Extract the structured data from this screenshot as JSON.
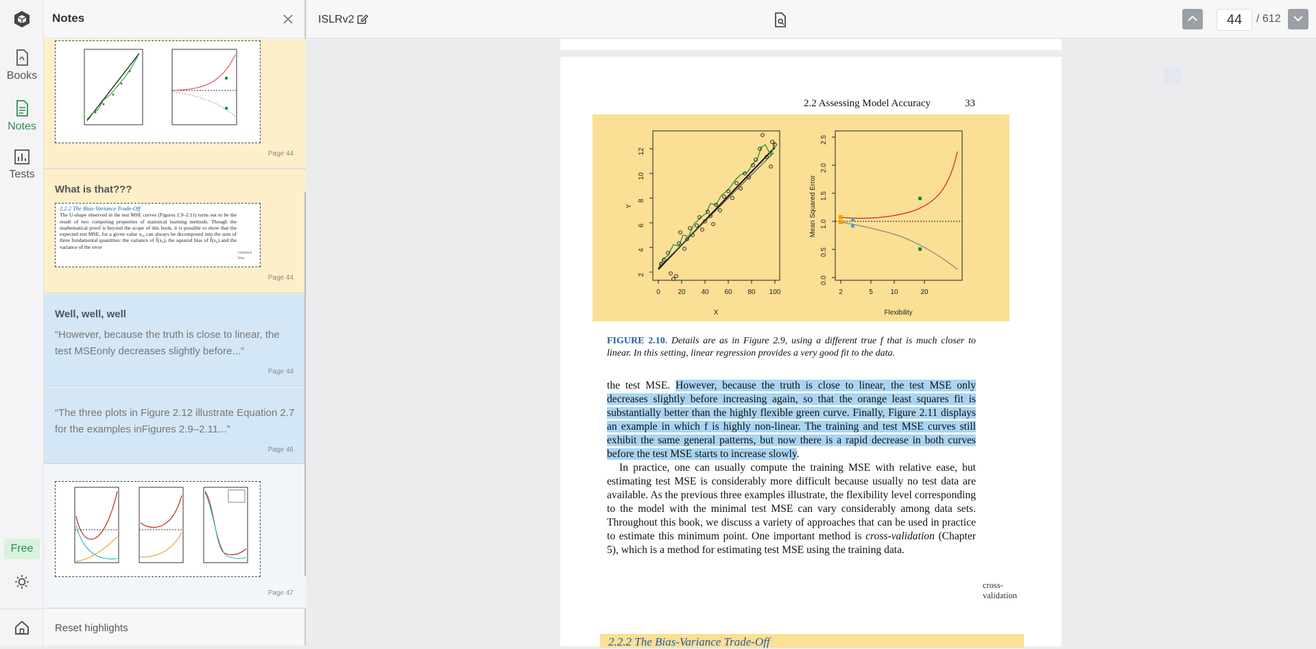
{
  "rail": {
    "books_label": "Books",
    "notes_label": "Notes",
    "tests_label": "Tests",
    "free_label": "Free"
  },
  "notes": {
    "title": "Notes",
    "items": [
      {
        "heading": "",
        "quote": "",
        "page": "Page 44"
      },
      {
        "heading": "What is that???",
        "quote": "",
        "page": "Page 44"
      },
      {
        "heading": "Well, well, well",
        "quote": "“However, because the truth is close to linear, the test MSEonly decreases slightly before...”",
        "page": "Page 44"
      },
      {
        "heading": "",
        "quote": "“The three plots in Figure 2.12 illustrate Equation 2.7 for the examples inFigures 2.9–2.11...”",
        "page": "Page 46"
      },
      {
        "heading": "",
        "quote": "",
        "page": "Page 47"
      }
    ],
    "reset_label": "Reset highlights",
    "snippet": {
      "section": "2.2.2   The Bias-Variance Trade-Off",
      "text": "The U-shape observed in the test MSE curves (Figures 2.9–2.11) turns out to be the result of two competing properties of statistical learning methods. Though the mathematical proof is beyond the scope of this book, it is possible to show that the expected test MSE, for a given value x₀, can always be decomposed into the sum of three fundamental quantities: the variance of f̂(x₀), the squared bias of f̂(x₀) and the variance of the error",
      "margin": "variance bias"
    }
  },
  "toolbar": {
    "doc_title": "ISLRv2",
    "current_page": "44",
    "total_pages": "/ 612"
  },
  "page": {
    "running_head": "2.2 Assessing Model Accuracy",
    "page_number": "33",
    "figure": {
      "left_xlabel": "X",
      "left_ylabel": "Y",
      "left_xticks": [
        "0",
        "20",
        "40",
        "60",
        "80",
        "100"
      ],
      "left_yticks": [
        "2",
        "4",
        "6",
        "8",
        "10",
        "12"
      ],
      "right_xlabel": "Flexibility",
      "right_ylabel": "Mean Squared Error",
      "right_xticks": [
        "2",
        "5",
        "10",
        "20"
      ],
      "right_yticks": [
        "0.0",
        "0.5",
        "1.0",
        "1.5",
        "2.0",
        "2.5"
      ]
    },
    "caption_label": "FIGURE 2.10.",
    "caption_text": " Details are as in Figure 2.9, using a different true f that is much closer to linear. In this setting, linear regression provides a very good fit to the data.",
    "para1_pre": "the test MSE. ",
    "para1_highlight": "However, because the truth is close to linear, the test MSE only decreases slightly before increasing again, so that the orange least squares fit is substantially better than the highly flexible green curve. Finally, Figure 2.11 displays an example in which f is highly non-linear. The training and test MSE curves still exhibit the same general patterns, but now there is a rapid decrease in both curves before the test MSE starts to increase slowly",
    "para1_post": ".",
    "para2_a": "In practice, one can usually compute the training MSE with relative ease, but estimating test MSE is considerably more difficult because usually no test data are available. As the previous three examples illustrate, the flexibility level corresponding to the model with the minimal test MSE can vary considerably among data sets. Throughout this book, we discuss a variety of approaches that can be used in practice to estimate this minimum point. One important method is ",
    "para2_em": "cross-validation",
    "para2_b": " (Chapter 5), which is a method for estimating test MSE using the training data.",
    "margin_note": "cross-validation",
    "section_heading": "2.2.2   The Bias-Variance Trade-Off"
  }
}
